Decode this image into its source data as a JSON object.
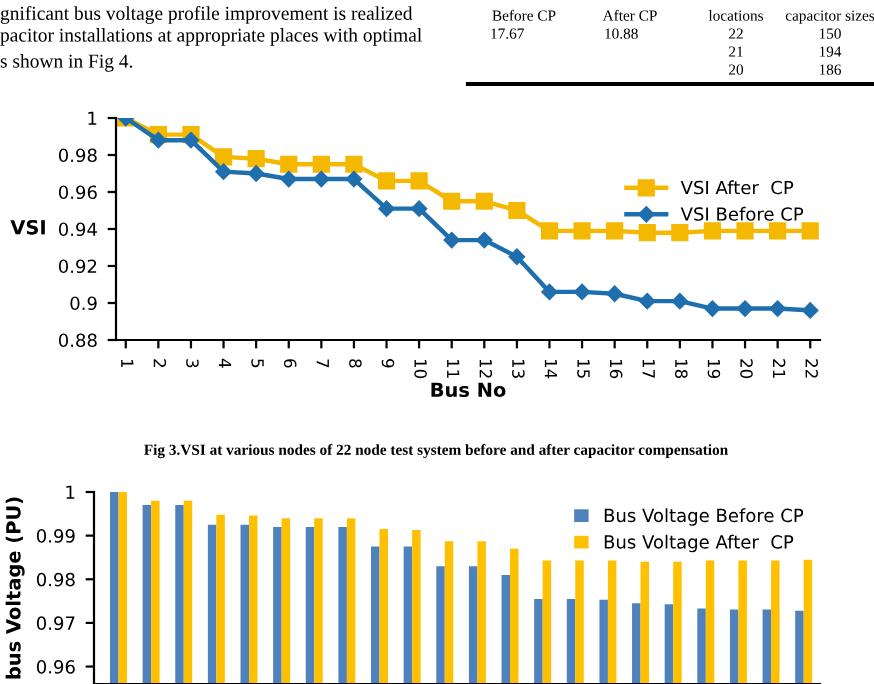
{
  "chart_data": [
    {
      "type": "line",
      "xlabel": "Bus No",
      "ylabel": "VSI",
      "categories": [
        "1",
        "2",
        "3",
        "4",
        "5",
        "6",
        "7",
        "8",
        "9",
        "10",
        "11",
        "12",
        "13",
        "14",
        "15",
        "16",
        "17",
        "18",
        "19",
        "20",
        "21",
        "22"
      ],
      "series": [
        {
          "name": "VSI After  CP",
          "color": "#f5b800",
          "marker": "square",
          "values": [
            1,
            0.991,
            0.991,
            0.979,
            0.978,
            0.975,
            0.975,
            0.975,
            0.966,
            0.966,
            0.955,
            0.955,
            0.95,
            0.939,
            0.939,
            0.939,
            0.938,
            0.938,
            0.939,
            0.939,
            0.939,
            0.939
          ]
        },
        {
          "name": "VSI Before CP",
          "color": "#1f6fae",
          "marker": "diamond",
          "values": [
            1,
            0.988,
            0.988,
            0.971,
            0.97,
            0.967,
            0.967,
            0.967,
            0.951,
            0.951,
            0.934,
            0.934,
            0.925,
            0.906,
            0.906,
            0.905,
            0.901,
            0.901,
            0.897,
            0.897,
            0.897,
            0.896
          ]
        }
      ],
      "ylim": [
        0.88,
        1.0
      ],
      "yticks": [
        0.88,
        0.9,
        0.92,
        0.94,
        0.96,
        0.98,
        1
      ],
      "grid": false,
      "legend": "right",
      "annotations": [
        "gnificant bus voltage profile improvement is realized",
        "pacitor installations at appropriate places with optimal",
        "s shown in Fig 4.",
        "Fig 3.VSI at various nodes of 22 node test system before and after capacitor compensation",
        "Before CP",
        "After CP",
        "locations",
        "capacitor sizes",
        "17.67",
        "10.88",
        "22",
        "150",
        "21",
        "194",
        "20",
        "186"
      ]
    },
    {
      "type": "bar",
      "ylabel": "bus Voltage (PU)",
      "categories": [
        null,
        null,
        null,
        null,
        null,
        null,
        null,
        null,
        null,
        null,
        null,
        null,
        null,
        null,
        null,
        null,
        null,
        null,
        null,
        null,
        null,
        null
      ],
      "series": [
        {
          "name": "Bus Voltage Before CP",
          "color": "#4f81bd",
          "values": [
            1,
            0.997,
            0.997,
            0.9925,
            0.9925,
            0.992,
            0.992,
            0.992,
            0.9875,
            0.9875,
            0.983,
            0.983,
            0.981,
            0.9755,
            0.9755,
            0.9753,
            0.9745,
            0.9743,
            0.9733,
            0.9731,
            0.9731,
            0.9728
          ]
        },
        {
          "name": "Bus Voltage After  CP",
          "color": "#ffc000",
          "values": [
            1,
            0.998,
            0.998,
            0.9948,
            0.9946,
            0.994,
            0.994,
            0.994,
            0.9915,
            0.9913,
            0.9887,
            0.9887,
            0.987,
            0.9843,
            0.9843,
            0.9843,
            0.984,
            0.984,
            0.9843,
            0.9843,
            0.9843,
            0.9845
          ]
        }
      ],
      "ylim": [
        0.956,
        1.0
      ],
      "yticks": [
        0.96,
        0.97,
        0.98,
        0.99,
        1
      ],
      "grid": false,
      "legend": "top right"
    }
  ]
}
